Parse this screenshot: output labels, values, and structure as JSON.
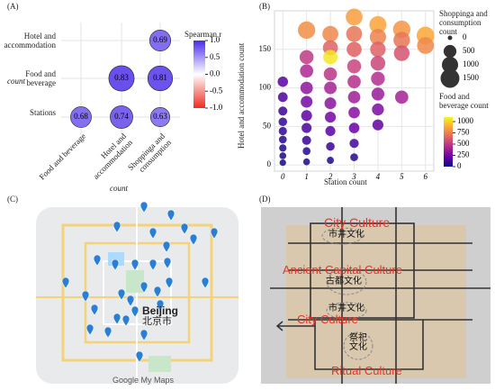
{
  "chart_data": [
    {
      "type": "correlation",
      "panel": "(A)",
      "x_categories": [
        "Food and beverage",
        "Hotel and accommodation",
        "Shoppinga and consumption"
      ],
      "y_categories": [
        "Hotel and accommodation",
        "Food and beverage",
        "Stations"
      ],
      "values": [
        [
          null,
          null,
          0.69
        ],
        [
          null,
          0.83,
          0.81
        ],
        [
          0.68,
          0.74,
          0.63
        ]
      ],
      "xlabel": "count",
      "ylabel": "count",
      "colorbar_title": "Spearman r",
      "colorbar_lim": [
        -1,
        1
      ],
      "colorbar_ticks": [
        {
          "value": 1,
          "label": "1.0"
        },
        {
          "value": 0.5,
          "label": "0.5"
        },
        {
          "value": 0,
          "label": "0.0"
        },
        {
          "value": -0.5,
          "label": "-0.5"
        },
        {
          "value": -1,
          "label": "-1.0"
        }
      ],
      "positive_color": "#4b2bea",
      "negative_color": "#f02a1f"
    },
    {
      "type": "bubble",
      "panel": "(B)",
      "xlabel": "Station count",
      "ylabel": "Hotel and accommodation count",
      "xlim": [
        -0.35,
        6.35
      ],
      "ylim": [
        -8,
        200
      ],
      "xticks": [
        0,
        1,
        2,
        3,
        4,
        5,
        6
      ],
      "yticks": [
        0,
        50,
        100,
        150
      ],
      "grid": true,
      "size_title": "Shoppinga and consumption count",
      "size_ticks": [
        0,
        500,
        1000,
        1500
      ],
      "size_lim": [
        0,
        1500
      ],
      "color_title": "Food and beverage count",
      "color_ticks": [
        0,
        250,
        500,
        750,
        1000
      ],
      "color_lim": [
        0,
        1100
      ],
      "colormap": [
        "#0d0887",
        "#6a00a8",
        "#b12a90",
        "#e16462",
        "#fca636",
        "#f0f921"
      ],
      "x": [
        0,
        0,
        0,
        0,
        0,
        0,
        0,
        0,
        0,
        1,
        1,
        1,
        1,
        1,
        1,
        1,
        1,
        1,
        1,
        2,
        2,
        2,
        2,
        2,
        2,
        2,
        2,
        2,
        2,
        3,
        3,
        3,
        3,
        3,
        3,
        3,
        3,
        3,
        3,
        4,
        4,
        4,
        4,
        4,
        4,
        4,
        4,
        5,
        5,
        5,
        5,
        6,
        6
      ],
      "y": [
        3,
        12,
        22,
        33,
        44,
        56,
        70,
        88,
        108,
        4,
        18,
        32,
        48,
        64,
        82,
        100,
        122,
        140,
        175,
        6,
        24,
        44,
        62,
        80,
        100,
        118,
        140,
        152,
        170,
        10,
        28,
        48,
        68,
        88,
        108,
        128,
        150,
        170,
        192,
        52,
        72,
        92,
        112,
        132,
        150,
        166,
        182,
        88,
        145,
        162,
        176,
        155,
        168
      ],
      "size": [
        30,
        40,
        60,
        80,
        100,
        120,
        150,
        200,
        250,
        40,
        80,
        150,
        220,
        300,
        380,
        450,
        550,
        650,
        1200,
        50,
        120,
        220,
        300,
        380,
        460,
        550,
        700,
        800,
        950,
        80,
        160,
        260,
        350,
        450,
        550,
        650,
        800,
        950,
        1100,
        300,
        400,
        500,
        620,
        750,
        880,
        1000,
        1150,
        550,
        900,
        1050,
        1200,
        1100,
        1250
      ],
      "color_values": [
        20,
        30,
        40,
        60,
        80,
        90,
        110,
        150,
        180,
        30,
        60,
        100,
        150,
        200,
        260,
        330,
        420,
        500,
        800,
        40,
        100,
        180,
        250,
        320,
        400,
        480,
        1050,
        650,
        780,
        60,
        130,
        220,
        300,
        380,
        460,
        540,
        650,
        720,
        850,
        200,
        280,
        360,
        450,
        550,
        650,
        760,
        870,
        400,
        600,
        720,
        820,
        780,
        880
      ]
    }
  ],
  "panel_c": {
    "label": "(C)",
    "city": "Beijing",
    "city_cn": "北京市",
    "credit": "Google My Maps"
  },
  "panel_d": {
    "label": "(D)",
    "zones": [
      {
        "en": "City Culture",
        "cn": "市井文化"
      },
      {
        "en": "Ancient Capital Culture",
        "cn": "古都文化"
      },
      {
        "en": "City Culture",
        "cn": "市井文化"
      },
      {
        "en": "Ritual Culture",
        "cn": "祭祀文化"
      }
    ]
  }
}
